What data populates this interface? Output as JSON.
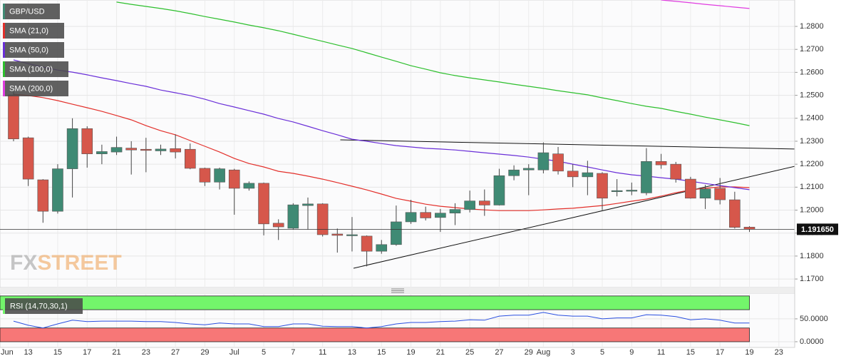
{
  "chart_data": [
    {
      "type": "candlestick",
      "name": "GBP/USD",
      "categories": [
        "Jun",
        null,
        "13",
        null,
        "15",
        null,
        "17",
        null,
        "21",
        null,
        "23",
        null,
        "27",
        null,
        "29",
        null,
        "Jul",
        null,
        "5",
        null,
        "7",
        null,
        "11",
        null,
        "13",
        null,
        "15",
        null,
        "19",
        null,
        "21",
        null,
        "25",
        null,
        "27",
        null,
        "29",
        "Aug",
        null,
        "3",
        null,
        "5",
        null,
        "9",
        null,
        "11",
        null,
        "15",
        null,
        "17",
        null,
        "19",
        null,
        "23"
      ],
      "open": [
        null,
        1.2502,
        1.2315,
        1.2132,
        1.1995,
        1.218,
        1.2355,
        1.2245,
        1.2253,
        1.227,
        1.2265,
        1.2258,
        1.2268,
        1.2265,
        1.2182,
        1.2122,
        1.2175,
        1.2095,
        1.2117,
        1.1943,
        1.1921,
        1.202,
        1.2027,
        1.1896,
        1.189,
        1.1887,
        1.1821,
        1.185,
        1.1949,
        1.199,
        1.1968,
        1.1987,
        1.2003,
        1.204,
        1.2022,
        1.215,
        1.2175,
        1.2175,
        1.2245,
        1.217,
        1.2145,
        1.216,
        1.2082,
        1.2085,
        1.2075,
        1.2212,
        1.22,
        1.2135,
        1.2052,
        1.2095,
        1.2045,
        1.1926,
        null,
        null
      ],
      "high": [
        null,
        1.2515,
        1.232,
        1.2135,
        1.22,
        1.24,
        1.2365,
        1.2285,
        1.232,
        1.23,
        1.2315,
        1.2285,
        1.233,
        1.229,
        1.2185,
        1.2185,
        1.218,
        1.2125,
        1.212,
        1.196,
        1.203,
        1.2055,
        1.203,
        1.192,
        1.197,
        1.189,
        1.187,
        1.202,
        1.2045,
        1.2015,
        1.2005,
        1.203,
        1.2085,
        1.209,
        1.218,
        1.2195,
        1.22,
        1.2295,
        1.2275,
        1.22,
        1.2215,
        1.2165,
        1.2135,
        1.212,
        1.227,
        1.2245,
        1.221,
        1.2145,
        1.211,
        1.214,
        1.208,
        1.193,
        null,
        null
      ],
      "low": [
        null,
        1.23,
        1.2105,
        1.1945,
        1.1985,
        1.2055,
        1.2185,
        1.22,
        1.224,
        1.2155,
        1.2165,
        1.224,
        1.2225,
        1.2178,
        1.2105,
        1.209,
        1.198,
        1.2085,
        1.189,
        1.187,
        1.1915,
        1.1915,
        1.1885,
        1.1815,
        1.182,
        1.1755,
        1.181,
        1.1845,
        1.194,
        1.1955,
        1.1905,
        1.1935,
        1.199,
        1.1975,
        1.202,
        1.213,
        1.2065,
        1.216,
        1.2155,
        1.21,
        1.2065,
        1.2,
        1.206,
        1.2065,
        1.2065,
        1.218,
        1.212,
        1.205,
        1.2005,
        1.2025,
        1.192,
        1.1905,
        null,
        null
      ],
      "close": [
        null,
        1.231,
        1.2135,
        1.1995,
        1.218,
        1.2355,
        1.2245,
        1.2255,
        1.2273,
        1.2262,
        1.226,
        1.2266,
        1.2253,
        1.2182,
        1.2122,
        1.218,
        1.2095,
        1.2117,
        1.194,
        1.1927,
        1.2023,
        1.2027,
        1.1893,
        1.189,
        1.1893,
        1.1821,
        1.185,
        1.1949,
        1.199,
        1.1966,
        1.1987,
        1.2003,
        1.204,
        1.2022,
        1.215,
        1.2175,
        1.2182,
        1.225,
        1.217,
        1.2145,
        1.2163,
        1.2052,
        1.2085,
        1.2087,
        1.2212,
        1.2197,
        1.2135,
        1.2052,
        1.2092,
        1.2045,
        1.1925,
        1.1917,
        null,
        null
      ],
      "up_color": "#3f8a74",
      "down_color": "#d6574b",
      "color": "#3f8a74",
      "overlays": [
        {
          "name": "SMA (21,0)",
          "color": "#e3302b",
          "values": [
            null,
            1.2505,
            1.2499,
            1.249,
            1.2477,
            1.2461,
            1.2446,
            1.243,
            1.2412,
            1.2393,
            1.2368,
            1.2346,
            1.2328,
            1.2303,
            1.2278,
            1.2253,
            1.2225,
            1.2203,
            1.2188,
            1.2169,
            1.216,
            1.2148,
            1.2135,
            1.212,
            1.2104,
            1.2088,
            1.207,
            1.2051,
            1.2039,
            1.2026,
            1.2017,
            1.2011,
            1.2005,
            1.2001,
            1.1998,
            1.1998,
            1.1998,
            1.2001,
            1.2005,
            1.2008,
            1.2014,
            1.202,
            1.2029,
            1.2039,
            1.2048,
            1.2061,
            1.2076,
            1.2088,
            1.2095,
            1.2101,
            1.2101,
            1.2098,
            null,
            null
          ]
        },
        {
          "name": "SMA (50,0)",
          "color": "#6a2fd8",
          "values": [
            null,
            1.2654,
            1.2638,
            1.2623,
            1.261,
            1.2601,
            1.2589,
            1.2576,
            1.2564,
            1.2551,
            1.2539,
            1.2523,
            1.2511,
            1.2499,
            1.2483,
            1.2464,
            1.2449,
            1.2433,
            1.2418,
            1.2399,
            1.2384,
            1.2365,
            1.2346,
            1.2328,
            1.2309,
            1.23,
            1.229,
            1.2281,
            1.2275,
            1.2269,
            1.2266,
            1.2262,
            1.2256,
            1.225,
            1.2244,
            1.2238,
            1.2231,
            1.2222,
            1.2213,
            1.22,
            1.2188,
            1.2175,
            1.2163,
            1.2154,
            1.2148,
            1.2141,
            1.2135,
            1.2126,
            1.2116,
            1.2107,
            1.2098,
            1.2089,
            null,
            null
          ]
        },
        {
          "name": "SMA (100,0)",
          "color": "#2dbf2d",
          "values": [
            null,
            null,
            null,
            null,
            null,
            null,
            null,
            null,
            1.2906,
            1.2896,
            1.2887,
            1.2878,
            1.2868,
            1.2856,
            1.2843,
            1.2831,
            1.2819,
            1.2806,
            1.2794,
            1.2781,
            1.2766,
            1.275,
            1.2735,
            1.2719,
            1.2704,
            1.2685,
            1.2666,
            1.2648,
            1.2629,
            1.2614,
            1.2598,
            1.2586,
            1.2576,
            1.2567,
            1.2558,
            1.2548,
            1.2539,
            1.253,
            1.252,
            1.2511,
            1.2502,
            1.2489,
            1.2477,
            1.2464,
            1.2452,
            1.2443,
            1.243,
            1.2418,
            1.2405,
            1.2393,
            1.2381,
            1.2368,
            null,
            null
          ]
        },
        {
          "name": "SMA (200,0)",
          "color": "#e03ce0",
          "values": [
            null,
            null,
            null,
            null,
            null,
            null,
            null,
            null,
            null,
            null,
            null,
            null,
            null,
            null,
            null,
            null,
            null,
            null,
            null,
            null,
            null,
            null,
            null,
            null,
            null,
            null,
            null,
            null,
            null,
            null,
            null,
            null,
            null,
            null,
            null,
            null,
            null,
            null,
            null,
            null,
            null,
            null,
            null,
            null,
            null,
            1.2915,
            1.2909,
            1.2903,
            1.2896,
            1.289,
            1.2884,
            1.2878,
            null,
            null
          ]
        }
      ],
      "trendlines": [
        {
          "x": [
            23.2,
            54.1
          ],
          "y": [
            1.2306,
            1.2266
          ]
        },
        {
          "x": [
            24.1,
            54.1
          ],
          "y": [
            1.1747,
            1.2191
          ]
        }
      ],
      "last_price": {
        "value": 1.19165,
        "label": "1.191650"
      },
      "watermark": [
        "FX",
        "STREET"
      ],
      "ylim": [
        1.1663,
        1.2915
      ],
      "yticks": [
        {
          "value": 1.17,
          "label": "1.1700"
        },
        {
          "value": 1.18,
          "label": "1.1800"
        },
        {
          "value": 1.19,
          "label": "1.1900"
        },
        {
          "value": 1.2,
          "label": "1.2000"
        },
        {
          "value": 1.21,
          "label": "1.2100"
        },
        {
          "value": 1.22,
          "label": "1.2200"
        },
        {
          "value": 1.23,
          "label": "1.2300"
        },
        {
          "value": 1.24,
          "label": "1.2400"
        },
        {
          "value": 1.25,
          "label": "1.2500"
        },
        {
          "value": 1.26,
          "label": "1.2600"
        },
        {
          "value": 1.27,
          "label": "1.2700"
        },
        {
          "value": 1.28,
          "label": "1.2800"
        }
      ],
      "grid": true
    },
    {
      "type": "line",
      "name": "RSI (14,70,30,1)",
      "color": "#2a4fe0",
      "values": [
        null,
        45,
        36,
        30,
        39,
        47,
        44,
        45,
        45,
        45,
        44,
        44,
        42,
        39,
        37,
        41,
        39,
        39,
        33,
        33,
        39,
        39,
        34,
        33,
        33,
        30,
        33,
        39,
        42,
        42,
        44,
        45,
        48,
        47,
        56,
        58,
        58,
        64,
        58,
        56,
        56,
        50,
        52,
        52,
        59,
        58,
        55,
        48,
        50,
        47,
        41,
        41,
        null,
        null
      ],
      "upper_band": [
        70,
        100
      ],
      "lower_band": [
        0,
        30
      ],
      "upper_color": "#73f56b",
      "lower_color": "#f77777",
      "ylim": [
        -12.5,
        106
      ],
      "yticks": [
        {
          "value": 0,
          "label": "0.0000"
        },
        {
          "value": 50,
          "label": "50.0000"
        }
      ],
      "grid": true
    }
  ]
}
